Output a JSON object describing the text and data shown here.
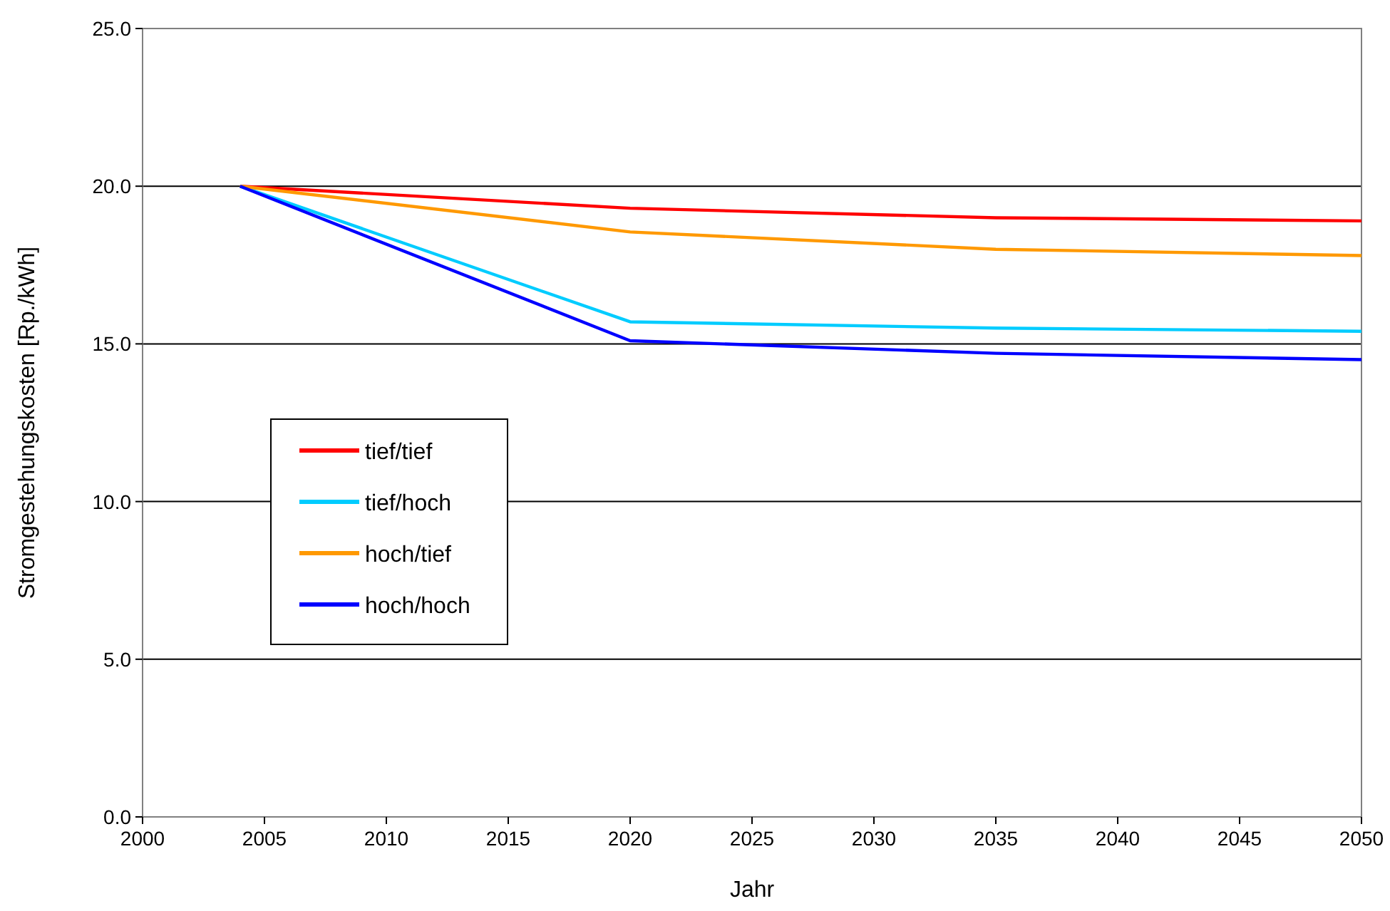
{
  "chart_data": {
    "type": "line",
    "xlabel": "Jahr",
    "ylabel": "Stromgestehungskosten [Rp./kWh]",
    "x": [
      2004,
      2020,
      2035,
      2050
    ],
    "series": [
      {
        "name": "tief/tief",
        "color": "#ff0000",
        "values": [
          20.0,
          19.3,
          19.0,
          18.9
        ]
      },
      {
        "name": "tief/hoch",
        "color": "#00ccff",
        "values": [
          20.0,
          15.7,
          15.5,
          15.4
        ]
      },
      {
        "name": "hoch/tief",
        "color": "#ff9900",
        "values": [
          20.0,
          18.55,
          18.0,
          17.8
        ]
      },
      {
        "name": "hoch/hoch",
        "color": "#0000ff",
        "values": [
          20.0,
          15.1,
          14.7,
          14.5
        ]
      }
    ],
    "xlim": [
      2000,
      2050
    ],
    "xticks": [
      2000,
      2005,
      2010,
      2015,
      2020,
      2025,
      2030,
      2035,
      2040,
      2045,
      2050
    ],
    "ylim": [
      0,
      25
    ],
    "yticks": [
      {
        "value": 0,
        "label": "0.0"
      },
      {
        "value": 5,
        "label": "5.0"
      },
      {
        "value": 10,
        "label": "10.0"
      },
      {
        "value": 15,
        "label": "15.0"
      },
      {
        "value": 20,
        "label": "20.0"
      },
      {
        "value": 25,
        "label": "25.0"
      }
    ],
    "grid": "y",
    "legend": "left"
  }
}
